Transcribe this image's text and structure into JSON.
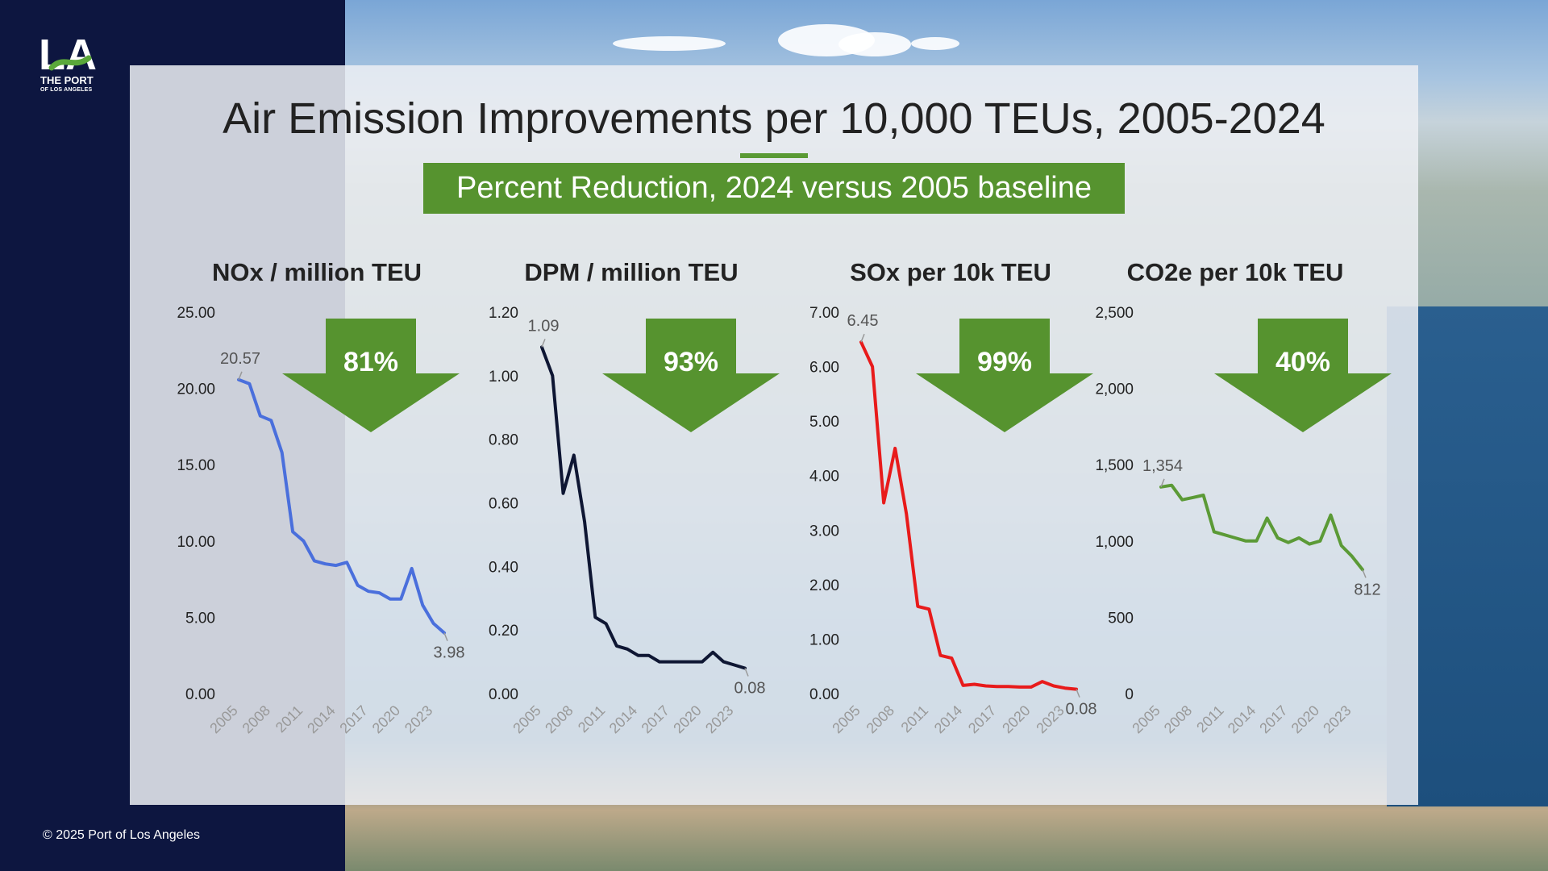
{
  "slide": {
    "title": "Air Emission Improvements per 10,000 TEUs, 2005-2024",
    "banner": "Percent Reduction, 2024 versus 2005 baseline",
    "copyright": "© 2025 Port of Los Angeles",
    "logo": {
      "mark": "LA",
      "line1": "THE PORT",
      "line2": "OF LOS ANGELES"
    }
  },
  "colors": {
    "accent_green": "#56932f",
    "left_band": "#0d1640"
  },
  "chart_data": [
    {
      "type": "line",
      "title": "NOx / million TEU",
      "color": "#4a6fdc",
      "reduction_label": "81%",
      "x": [
        2005,
        2006,
        2007,
        2008,
        2009,
        2010,
        2011,
        2012,
        2013,
        2014,
        2015,
        2016,
        2017,
        2018,
        2019,
        2020,
        2021,
        2022,
        2023,
        2024
      ],
      "xticks": [
        "2005",
        "2008",
        "2011",
        "2014",
        "2017",
        "2020",
        "2023"
      ],
      "values": [
        20.57,
        20.3,
        18.2,
        17.9,
        15.8,
        10.6,
        10.0,
        8.7,
        8.5,
        8.4,
        8.6,
        7.1,
        6.7,
        6.6,
        6.2,
        6.2,
        8.2,
        5.8,
        4.6,
        3.98
      ],
      "yticks": [
        "0.00",
        "5.00",
        "10.00",
        "15.00",
        "20.00",
        "25.00"
      ],
      "ylim": [
        0,
        25
      ],
      "first_label": "20.57",
      "last_label": "3.98",
      "grid": false
    },
    {
      "type": "line",
      "title": "DPM / million TEU",
      "color": "#0e1633",
      "reduction_label": "93%",
      "x": [
        2005,
        2006,
        2007,
        2008,
        2009,
        2010,
        2011,
        2012,
        2013,
        2014,
        2015,
        2016,
        2017,
        2018,
        2019,
        2020,
        2021,
        2022,
        2023,
        2024
      ],
      "xticks": [
        "2005",
        "2008",
        "2011",
        "2014",
        "2017",
        "2020",
        "2023"
      ],
      "values": [
        1.09,
        1.0,
        0.63,
        0.75,
        0.54,
        0.24,
        0.22,
        0.15,
        0.14,
        0.12,
        0.12,
        0.1,
        0.1,
        0.1,
        0.1,
        0.1,
        0.13,
        0.1,
        0.09,
        0.08
      ],
      "yticks": [
        "0.00",
        "0.20",
        "0.40",
        "0.60",
        "0.80",
        "1.00",
        "1.20"
      ],
      "ylim": [
        0,
        1.2
      ],
      "first_label": "1.09",
      "last_label": "0.08",
      "grid": false
    },
    {
      "type": "line",
      "title": "SOx per 10k TEU",
      "color": "#e81b1b",
      "reduction_label": "99%",
      "x": [
        2005,
        2006,
        2007,
        2008,
        2009,
        2010,
        2011,
        2012,
        2013,
        2014,
        2015,
        2016,
        2017,
        2018,
        2019,
        2020,
        2021,
        2022,
        2023,
        2024
      ],
      "xticks": [
        "2005",
        "2008",
        "2011",
        "2014",
        "2017",
        "2020",
        "2023"
      ],
      "values": [
        6.45,
        6.0,
        3.5,
        4.5,
        3.3,
        1.6,
        1.55,
        0.7,
        0.65,
        0.15,
        0.17,
        0.14,
        0.13,
        0.13,
        0.12,
        0.12,
        0.22,
        0.14,
        0.1,
        0.08
      ],
      "yticks": [
        "0.00",
        "1.00",
        "2.00",
        "3.00",
        "4.00",
        "5.00",
        "6.00",
        "7.00"
      ],
      "ylim": [
        0,
        7
      ],
      "first_label": "6.45",
      "last_label": "0.08",
      "grid": false
    },
    {
      "type": "line",
      "title": "CO2e per 10k TEU",
      "color": "#5b9a36",
      "reduction_label": "40%",
      "x": [
        2005,
        2006,
        2007,
        2008,
        2009,
        2010,
        2011,
        2012,
        2013,
        2014,
        2015,
        2016,
        2017,
        2018,
        2019,
        2020,
        2021,
        2022,
        2023,
        2024
      ],
      "xticks": [
        "2005",
        "2008",
        "2011",
        "2014",
        "2017",
        "2020",
        "2023"
      ],
      "values": [
        1354,
        1365,
        1270,
        1285,
        1300,
        1060,
        1040,
        1020,
        1000,
        1000,
        1150,
        1020,
        990,
        1020,
        980,
        1000,
        1170,
        970,
        900,
        812
      ],
      "yticks": [
        "0",
        "500",
        "1,000",
        "1,500",
        "2,000",
        "2,500"
      ],
      "ylim": [
        0,
        2500
      ],
      "first_label": "1,354",
      "last_label": "812",
      "grid": false
    }
  ]
}
